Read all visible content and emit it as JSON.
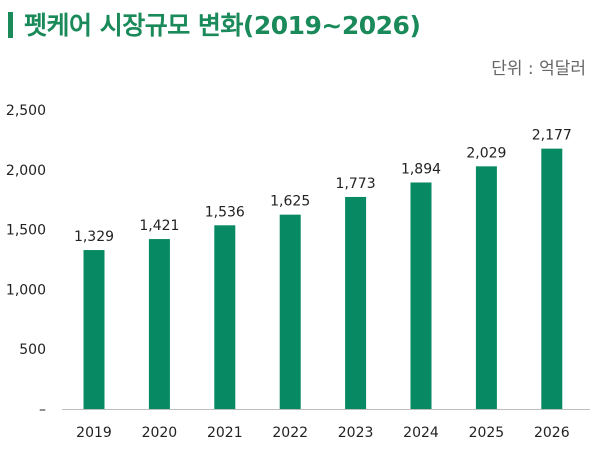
{
  "header": {
    "title": "펫케어 시장규모 변화(2019~2026)",
    "unit": "단위 : 억달러"
  },
  "colors": {
    "accent": "#1a8a5a",
    "bar": "#078a63"
  },
  "chart_data": {
    "type": "bar",
    "title": "펫케어 시장규모 변화(2019~2026)",
    "unit_label": "단위 : 억달러",
    "categories": [
      "2019",
      "2020",
      "2021",
      "2022",
      "2023",
      "2024",
      "2025",
      "2026"
    ],
    "values": [
      1329,
      1421,
      1536,
      1625,
      1773,
      1894,
      2029,
      2177
    ],
    "value_labels": [
      "1,329",
      "1,421",
      "1,536",
      "1,625",
      "1,773",
      "1,894",
      "2,029",
      "2,177"
    ],
    "yticks": [
      0,
      500,
      1000,
      1500,
      2000,
      2500
    ],
    "ytick_labels": [
      "–",
      "500",
      "1,000",
      "1,500",
      "2,000",
      "2,500"
    ],
    "ylim": [
      0,
      2500
    ],
    "grid": false,
    "legend": "none"
  }
}
